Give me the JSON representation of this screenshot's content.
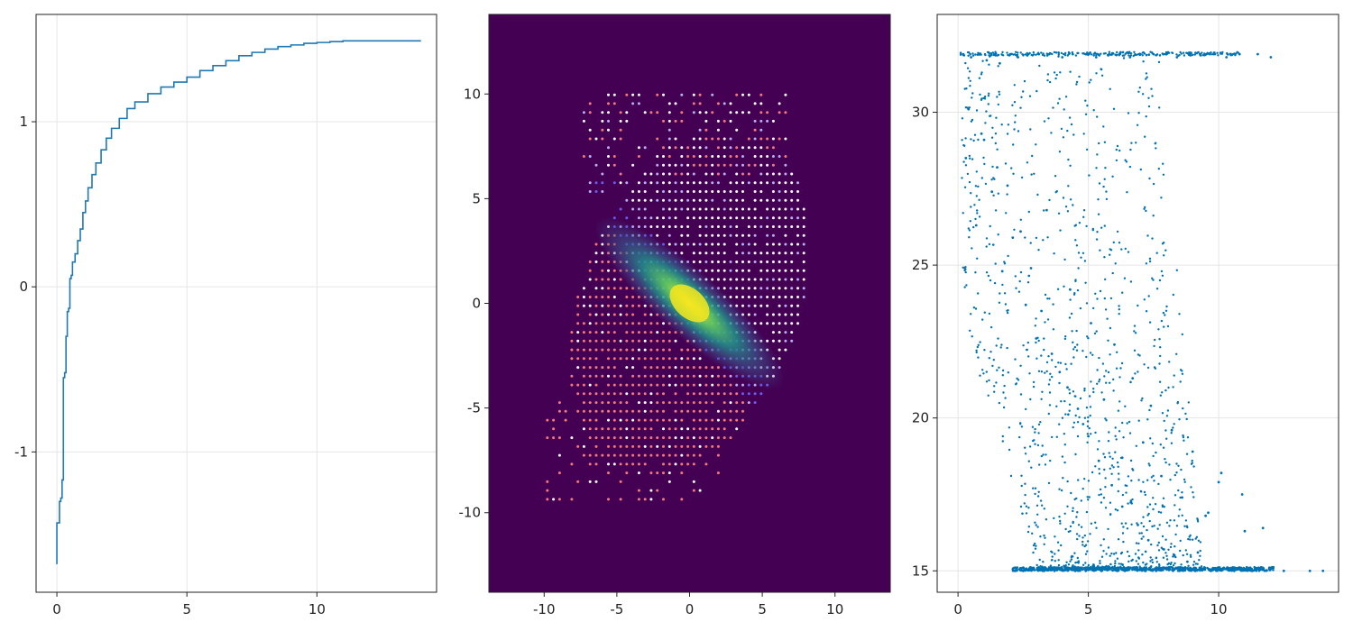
{
  "figure": {
    "colors": {
      "line": "#1f78b4",
      "scatter": "#0072b2",
      "heat_background": "#440154",
      "frame": "#222222",
      "grid": "#e5e5e5"
    }
  },
  "chart_data": [
    {
      "type": "line",
      "title": "",
      "xlabel": "",
      "ylabel": "",
      "xlim": [
        -0.8,
        14.6
      ],
      "ylim": [
        -1.85,
        1.65
      ],
      "xticks": [
        0,
        5,
        10
      ],
      "yticks": [
        -1,
        0,
        1
      ],
      "xtick_labels": [
        "0",
        "5",
        "10"
      ],
      "ytick_labels": [
        "-1",
        "0",
        "1"
      ],
      "grid": true,
      "series": [
        {
          "x": [
            0.0,
            0.0,
            0.1,
            0.15,
            0.2,
            0.25,
            0.3,
            0.3,
            0.35,
            0.4,
            0.4,
            0.45,
            0.5,
            0.55,
            0.6,
            0.7,
            0.8,
            0.9,
            1.0,
            1.1,
            1.2,
            1.35,
            1.5,
            1.7,
            1.9,
            2.1,
            2.4,
            2.7,
            3.0,
            3.5,
            4.0,
            4.5,
            5.0,
            5.5,
            6.0,
            6.5,
            7.0,
            7.5,
            8.0,
            8.5,
            9.0,
            9.5,
            10.0,
            10.5,
            11.0,
            12.0,
            13.0,
            14.0
          ],
          "y": [
            -1.68,
            -1.43,
            -1.3,
            -1.28,
            -1.17,
            -0.55,
            -0.55,
            -0.52,
            -0.3,
            -0.3,
            -0.15,
            -0.13,
            0.05,
            0.07,
            0.15,
            0.2,
            0.28,
            0.35,
            0.45,
            0.52,
            0.6,
            0.68,
            0.75,
            0.83,
            0.9,
            0.96,
            1.02,
            1.08,
            1.12,
            1.17,
            1.21,
            1.24,
            1.27,
            1.31,
            1.34,
            1.37,
            1.4,
            1.42,
            1.44,
            1.455,
            1.465,
            1.475,
            1.48,
            1.485,
            1.49,
            1.49,
            1.49,
            1.49
          ]
        }
      ]
    },
    {
      "type": "heatmap",
      "title": "",
      "xlabel": "",
      "ylabel": "",
      "xlim": [
        -13.8,
        13.8
      ],
      "ylim": [
        -13.8,
        13.8
      ],
      "xticks": [
        -10,
        -5,
        0,
        5,
        10
      ],
      "yticks": [
        -10,
        -5,
        0,
        5,
        10
      ],
      "xtick_labels": [
        "-10",
        "-5",
        "0",
        "5",
        "10"
      ],
      "ytick_labels": [
        "-10",
        "-5",
        "0",
        "5",
        "10"
      ],
      "grid": false,
      "colormap": "viridis",
      "background": "#440154",
      "point_colors": [
        "#ffffff",
        "#f47a7a",
        "#6a5cf2",
        "#b8aef5"
      ]
    },
    {
      "type": "scatter",
      "title": "",
      "xlabel": "",
      "ylabel": "",
      "xlim": [
        -0.8,
        14.6
      ],
      "ylim": [
        14.3,
        33.2
      ],
      "xticks": [
        0,
        5,
        10
      ],
      "yticks": [
        15,
        20,
        25,
        30
      ],
      "xtick_labels": [
        "0",
        "5",
        "10"
      ],
      "ytick_labels": [
        "15",
        "20",
        "25",
        "30"
      ],
      "grid": true,
      "series": [
        {
          "x": [
            0.2,
            0.5,
            0.8,
            1.1,
            1.4,
            1.6,
            2.0,
            2.3,
            2.7,
            3.1,
            3.5,
            4.0,
            4.4,
            4.9,
            5.3,
            5.8,
            6.2,
            6.6,
            7.0,
            7.5,
            8.0,
            8.4,
            8.9,
            9.3,
            9.8,
            10.3,
            10.8,
            11.5,
            12.0,
            0.3,
            0.7,
            1.0,
            1.3,
            1.7,
            2.1,
            2.6,
            3.0,
            3.4,
            3.9,
            4.3,
            4.8,
            5.1,
            5.6,
            6.0,
            6.3,
            6.7,
            7.1,
            7.4,
            7.8,
            8.2,
            8.6,
            9.0,
            9.5,
            10.0,
            11.0,
            2.2,
            2.5,
            2.9,
            3.3,
            3.7,
            4.1,
            4.5,
            4.9,
            5.2,
            5.5,
            5.8,
            6.1,
            6.4,
            6.8,
            7.2,
            7.6,
            8.1,
            8.5,
            9.1,
            9.7,
            10.2,
            10.6,
            11.3,
            12.5,
            13.5,
            14.0,
            0.4,
            0.9,
            1.5,
            1.9,
            2.4,
            2.8,
            3.2,
            3.6,
            4.2,
            4.6,
            5.0,
            5.4,
            5.9,
            6.3,
            6.9,
            7.3,
            7.9,
            8.3,
            8.8,
            9.2,
            9.6,
            10.1,
            10.9,
            11.7
          ],
          "y": [
            31.9,
            31.8,
            31.9,
            31.7,
            31.9,
            31.6,
            31.9,
            31.8,
            31.9,
            31.9,
            31.9,
            31.8,
            31.9,
            31.9,
            31.8,
            31.9,
            31.9,
            31.8,
            31.9,
            31.9,
            31.9,
            31.8,
            31.9,
            31.9,
            31.9,
            31.8,
            31.9,
            31.9,
            31.8,
            28.5,
            26.3,
            29.1,
            27.4,
            24.8,
            25.9,
            23.7,
            22.6,
            26.8,
            21.5,
            24.2,
            19.8,
            23.1,
            20.6,
            22.4,
            18.7,
            21.3,
            19.2,
            20.4,
            18.1,
            19.6,
            17.4,
            18.9,
            16.8,
            17.9,
            16.3,
            15.0,
            15.0,
            15.1,
            15.0,
            15.0,
            15.1,
            15.0,
            15.0,
            15.2,
            15.0,
            15.1,
            15.0,
            15.0,
            15.1,
            15.0,
            15.0,
            15.1,
            15.0,
            15.0,
            15.0,
            15.1,
            15.0,
            15.0,
            15.0,
            15.0,
            15.0,
            30.1,
            29.3,
            28.2,
            27.6,
            26.1,
            24.9,
            23.5,
            22.1,
            21.0,
            20.3,
            19.4,
            18.6,
            17.8,
            17.1,
            16.5,
            16.0,
            15.7,
            15.5,
            15.3,
            15.6,
            16.9,
            18.2,
            17.5,
            16.4
          ]
        }
      ]
    }
  ]
}
